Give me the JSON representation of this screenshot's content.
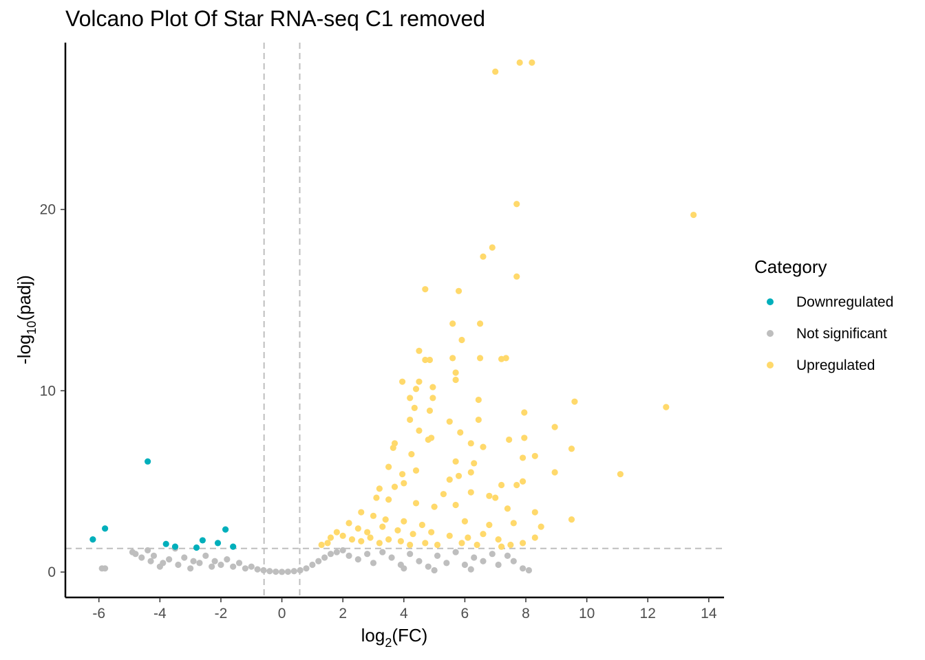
{
  "colors": {
    "down": "#00AFBB",
    "ns": "#BEBEBE",
    "up": "#FFD96B",
    "threshold": "#BEBEBE"
  },
  "chart_data": {
    "type": "scatter",
    "title": "Volcano Plot Of Star RNA-seq C1 removed",
    "xlabel_main": "log",
    "xlabel_sub": "2",
    "xlabel_tail": "(FC)",
    "ylabel_main": "-log",
    "ylabel_sub": "10",
    "ylabel_tail": "(padj)",
    "xlim": [
      -7.1,
      14.5
    ],
    "ylim": [
      -1.4,
      29.2
    ],
    "x_ticks": [
      -6,
      -4,
      -2,
      0,
      2,
      4,
      6,
      8,
      10,
      12,
      14
    ],
    "x_tick_labels": [
      "-6",
      "-4",
      "-2",
      "0",
      "2",
      "4",
      "6",
      "8",
      "10",
      "12",
      "14"
    ],
    "y_ticks": [
      0,
      10,
      20
    ],
    "y_tick_labels": [
      "0",
      "10",
      "20"
    ],
    "thresholds": {
      "log2fc": [
        -0.585,
        0.585
      ],
      "neg_log10_padj": 1.3
    },
    "grid": false,
    "legend": {
      "title": "Category",
      "position": "right",
      "entries": [
        {
          "key": "down",
          "label": "Downregulated"
        },
        {
          "key": "ns",
          "label": "Not significant"
        },
        {
          "key": "up",
          "label": "Upregulated"
        }
      ]
    },
    "series": [
      {
        "name": "Downregulated",
        "key": "down",
        "points": [
          [
            -4.4,
            6.1
          ],
          [
            -5.8,
            2.4
          ],
          [
            -6.2,
            1.8
          ],
          [
            -3.8,
            1.55
          ],
          [
            -3.5,
            1.4
          ],
          [
            -2.6,
            1.75
          ],
          [
            -2.8,
            1.35
          ],
          [
            -2.1,
            1.6
          ],
          [
            -1.85,
            2.35
          ],
          [
            -1.6,
            1.4
          ]
        ]
      },
      {
        "name": "Not significant",
        "key": "ns",
        "points": [
          [
            -5.9,
            0.2
          ],
          [
            -5.8,
            0.2
          ],
          [
            -4.9,
            1.1
          ],
          [
            -4.8,
            1.0
          ],
          [
            -4.6,
            0.8
          ],
          [
            -4.4,
            1.2
          ],
          [
            -4.3,
            0.6
          ],
          [
            -4.2,
            0.9
          ],
          [
            -4.0,
            0.3
          ],
          [
            -3.9,
            0.5
          ],
          [
            -3.7,
            0.7
          ],
          [
            -3.5,
            1.3
          ],
          [
            -3.4,
            0.4
          ],
          [
            -3.2,
            0.8
          ],
          [
            -3.0,
            0.2
          ],
          [
            -2.9,
            0.6
          ],
          [
            -2.7,
            0.5
          ],
          [
            -2.5,
            0.9
          ],
          [
            -2.3,
            0.3
          ],
          [
            -2.2,
            0.6
          ],
          [
            -2.0,
            0.4
          ],
          [
            -1.8,
            0.7
          ],
          [
            -1.6,
            0.3
          ],
          [
            -1.4,
            0.5
          ],
          [
            -1.2,
            0.2
          ],
          [
            -1.0,
            0.3
          ],
          [
            -0.8,
            0.15
          ],
          [
            -0.6,
            0.1
          ],
          [
            -0.4,
            0.05
          ],
          [
            -0.2,
            0.02
          ],
          [
            0,
            0.01
          ],
          [
            0.2,
            0.02
          ],
          [
            0.4,
            0.05
          ],
          [
            0.6,
            0.1
          ],
          [
            0.8,
            0.2
          ],
          [
            1.0,
            0.4
          ],
          [
            1.2,
            0.6
          ],
          [
            1.4,
            0.8
          ],
          [
            1.6,
            1.0
          ],
          [
            1.8,
            1.1
          ],
          [
            2.0,
            1.2
          ],
          [
            2.2,
            0.9
          ],
          [
            2.5,
            0.7
          ],
          [
            2.8,
            1.0
          ],
          [
            3.0,
            0.5
          ],
          [
            3.3,
            1.1
          ],
          [
            3.6,
            0.8
          ],
          [
            3.9,
            0.4
          ],
          [
            4.2,
            1.0
          ],
          [
            4.5,
            0.6
          ],
          [
            4.8,
            0.3
          ],
          [
            5.1,
            0.9
          ],
          [
            5.4,
            0.5
          ],
          [
            5.7,
            1.1
          ],
          [
            6.0,
            0.4
          ],
          [
            6.3,
            0.8
          ],
          [
            6.6,
            0.6
          ],
          [
            6.9,
            1.0
          ],
          [
            7.1,
            0.4
          ],
          [
            7.4,
            0.9
          ],
          [
            7.6,
            0.6
          ],
          [
            7.9,
            0.2
          ],
          [
            8.1,
            0.1
          ],
          [
            4.0,
            0.2
          ],
          [
            5.0,
            0.1
          ],
          [
            6.2,
            0.15
          ]
        ]
      },
      {
        "name": "Upregulated",
        "key": "up",
        "points": [
          [
            7.0,
            27.6
          ],
          [
            7.8,
            28.1
          ],
          [
            8.2,
            28.1
          ],
          [
            7.7,
            20.3
          ],
          [
            13.5,
            19.7
          ],
          [
            6.9,
            17.9
          ],
          [
            6.6,
            17.4
          ],
          [
            7.7,
            16.3
          ],
          [
            4.7,
            15.6
          ],
          [
            5.8,
            15.5
          ],
          [
            5.6,
            13.7
          ],
          [
            6.5,
            13.7
          ],
          [
            5.9,
            12.8
          ],
          [
            4.5,
            12.2
          ],
          [
            4.7,
            11.7
          ],
          [
            4.85,
            11.7
          ],
          [
            5.6,
            11.8
          ],
          [
            6.5,
            11.8
          ],
          [
            7.2,
            11.75
          ],
          [
            7.35,
            11.8
          ],
          [
            5.7,
            11.0
          ],
          [
            5.7,
            10.6
          ],
          [
            3.95,
            10.5
          ],
          [
            4.5,
            10.5
          ],
          [
            4.4,
            10.1
          ],
          [
            4.95,
            10.2
          ],
          [
            4.2,
            9.6
          ],
          [
            4.95,
            9.6
          ],
          [
            6.45,
            9.5
          ],
          [
            9.6,
            9.4
          ],
          [
            4.35,
            9.05
          ],
          [
            4.85,
            8.9
          ],
          [
            12.6,
            9.1
          ],
          [
            7.95,
            8.8
          ],
          [
            4.2,
            8.4
          ],
          [
            5.5,
            8.3
          ],
          [
            6.45,
            8.4
          ],
          [
            8.95,
            8.0
          ],
          [
            4.5,
            7.8
          ],
          [
            5.85,
            7.7
          ],
          [
            3.7,
            7.1
          ],
          [
            4.8,
            7.3
          ],
          [
            4.9,
            7.4
          ],
          [
            7.95,
            7.4
          ],
          [
            7.45,
            7.3
          ],
          [
            6.2,
            7.1
          ],
          [
            6.6,
            6.9
          ],
          [
            3.65,
            6.85
          ],
          [
            4.25,
            6.5
          ],
          [
            9.5,
            6.8
          ],
          [
            8.3,
            6.4
          ],
          [
            7.9,
            6.3
          ],
          [
            5.7,
            6.1
          ],
          [
            6.3,
            6.0
          ],
          [
            3.5,
            5.8
          ],
          [
            4.4,
            5.6
          ],
          [
            3.95,
            5.4
          ],
          [
            5.8,
            5.3
          ],
          [
            6.2,
            5.5
          ],
          [
            8.95,
            5.5
          ],
          [
            11.1,
            5.4
          ],
          [
            5.5,
            5.1
          ],
          [
            7.2,
            4.8
          ],
          [
            7.7,
            4.8
          ],
          [
            7.9,
            5.0
          ],
          [
            4.0,
            4.9
          ],
          [
            3.7,
            4.7
          ],
          [
            3.2,
            4.6
          ],
          [
            5.3,
            4.3
          ],
          [
            6.2,
            4.4
          ],
          [
            6.8,
            4.2
          ],
          [
            7.0,
            4.1
          ],
          [
            3.1,
            4.1
          ],
          [
            3.5,
            4.0
          ],
          [
            4.4,
            3.8
          ],
          [
            5.0,
            3.6
          ],
          [
            5.7,
            3.7
          ],
          [
            7.4,
            3.5
          ],
          [
            8.3,
            3.3
          ],
          [
            9.5,
            2.9
          ],
          [
            2.6,
            3.3
          ],
          [
            3.0,
            3.1
          ],
          [
            3.4,
            2.9
          ],
          [
            4.0,
            2.8
          ],
          [
            4.6,
            2.6
          ],
          [
            6.0,
            2.8
          ],
          [
            6.8,
            2.6
          ],
          [
            7.6,
            2.7
          ],
          [
            8.5,
            2.5
          ],
          [
            2.2,
            2.7
          ],
          [
            2.5,
            2.4
          ],
          [
            2.8,
            2.2
          ],
          [
            3.3,
            2.5
          ],
          [
            3.8,
            2.3
          ],
          [
            4.3,
            2.1
          ],
          [
            4.9,
            2.2
          ],
          [
            5.5,
            2.0
          ],
          [
            6.1,
            1.9
          ],
          [
            6.6,
            2.1
          ],
          [
            7.1,
            1.8
          ],
          [
            7.9,
            1.6
          ],
          [
            8.3,
            1.9
          ],
          [
            1.6,
            1.9
          ],
          [
            1.8,
            2.2
          ],
          [
            2.0,
            2.0
          ],
          [
            2.3,
            1.8
          ],
          [
            2.6,
            1.7
          ],
          [
            2.9,
            1.9
          ],
          [
            3.2,
            1.6
          ],
          [
            3.5,
            1.8
          ],
          [
            3.9,
            1.7
          ],
          [
            4.2,
            1.5
          ],
          [
            4.7,
            1.6
          ],
          [
            5.1,
            1.5
          ],
          [
            5.9,
            1.6
          ],
          [
            6.4,
            1.5
          ],
          [
            7.2,
            1.4
          ],
          [
            7.5,
            1.5
          ],
          [
            1.3,
            1.5
          ],
          [
            1.5,
            1.6
          ]
        ]
      }
    ]
  }
}
